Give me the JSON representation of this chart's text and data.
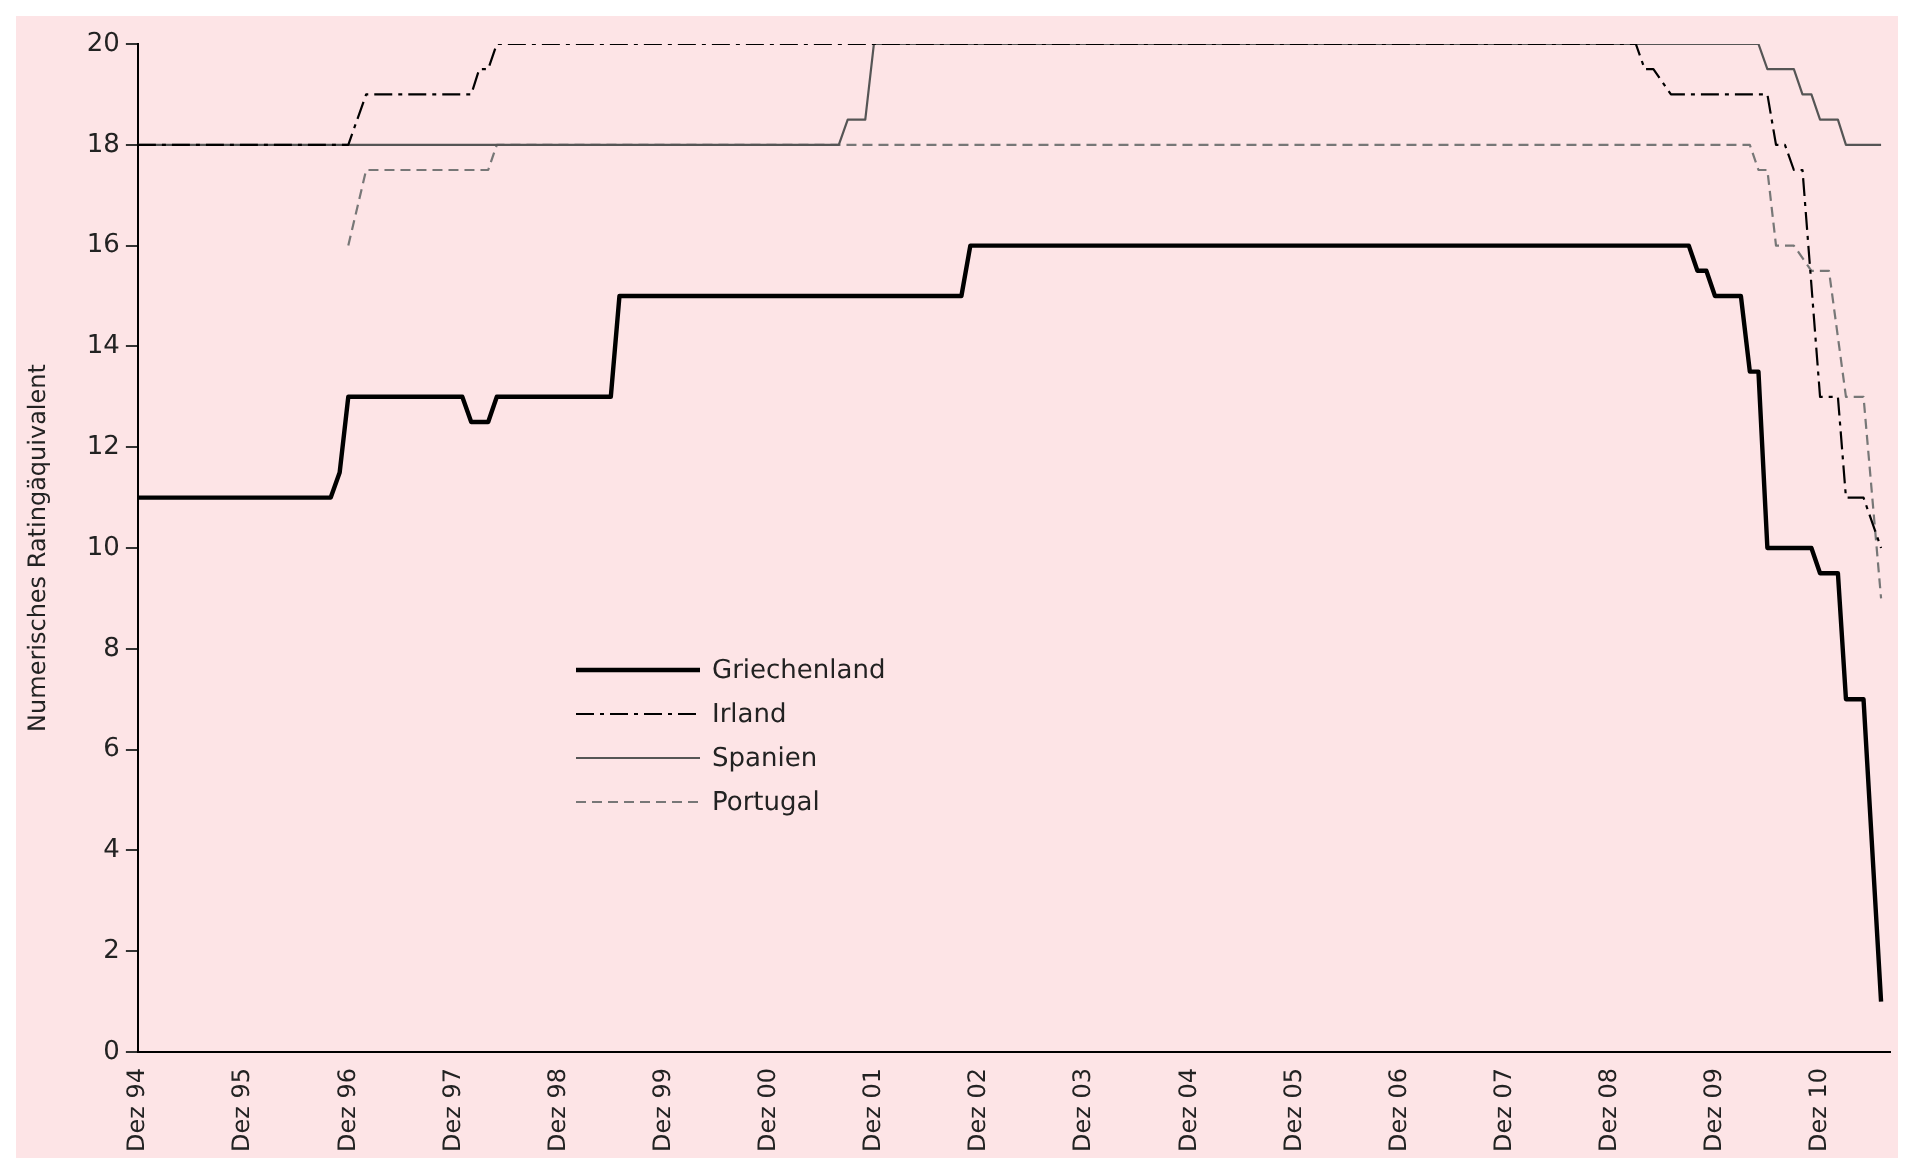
{
  "chart_data": {
    "type": "line",
    "ylabel": "Numerisches Ratingäquivalent",
    "xlim": [
      "1994-12",
      "2011-08"
    ],
    "xticks": [
      {
        "value": "1994-12",
        "label": "Dez 94"
      },
      {
        "value": "1995-12",
        "label": "Dez 95"
      },
      {
        "value": "1996-12",
        "label": "Dez 96"
      },
      {
        "value": "1997-12",
        "label": "Dez 97"
      },
      {
        "value": "1998-12",
        "label": "Dez 98"
      },
      {
        "value": "1999-12",
        "label": "Dez 99"
      },
      {
        "value": "2000-12",
        "label": "Dez 00"
      },
      {
        "value": "2001-12",
        "label": "Dez 01"
      },
      {
        "value": "2002-12",
        "label": "Dez 02"
      },
      {
        "value": "2003-12",
        "label": "Dez 03"
      },
      {
        "value": "2004-12",
        "label": "Dez 04"
      },
      {
        "value": "2005-12",
        "label": "Dez 05"
      },
      {
        "value": "2006-12",
        "label": "Dez 06"
      },
      {
        "value": "2007-12",
        "label": "Dez 07"
      },
      {
        "value": "2008-12",
        "label": "Dez 08"
      },
      {
        "value": "2009-12",
        "label": "Dez 09"
      },
      {
        "value": "2010-12",
        "label": "Dez 10"
      }
    ],
    "ylim": [
      0,
      20
    ],
    "yticks": [
      0,
      2,
      4,
      6,
      8,
      10,
      12,
      14,
      16,
      18,
      20
    ],
    "grid": false,
    "legend": "bottom",
    "marker": "none",
    "series": [
      {
        "name": "Griechenland",
        "color": "#000000",
        "line_style": "solid",
        "x": [
          "1994-12",
          "1996-10",
          "1996-11",
          "1996-12",
          "1998-01",
          "1998-02",
          "1998-04",
          "1998-05",
          "1999-06",
          "1999-07",
          "2002-10",
          "2002-11",
          "2009-09",
          "2009-10",
          "2009-11",
          "2009-12",
          "2010-03",
          "2010-04",
          "2010-05",
          "2010-06",
          "2010-11",
          "2010-12",
          "2011-02",
          "2011-03",
          "2011-05",
          "2011-07"
        ],
        "values": [
          11,
          11,
          11.5,
          13,
          13,
          12.5,
          12.5,
          13,
          13,
          15,
          15,
          16,
          16,
          15.5,
          15.5,
          15,
          15,
          13.5,
          13.5,
          10,
          10,
          9.5,
          9.5,
          7,
          7,
          1
        ]
      },
      {
        "name": "Irland",
        "color": "#000000",
        "line_style": "dashdot",
        "x": [
          "1994-12",
          "1996-12",
          "1997-02",
          "1998-02",
          "1998-03",
          "1998-04",
          "1998-05",
          "2009-03",
          "2009-04",
          "2009-05",
          "2009-07",
          "2010-06",
          "2010-07",
          "2010-08",
          "2010-09",
          "2010-10",
          "2010-12",
          "2011-02",
          "2011-03",
          "2011-05",
          "2011-07"
        ],
        "values": [
          18,
          18,
          19,
          19,
          19.5,
          19.5,
          20,
          20,
          19.5,
          19.5,
          19,
          19,
          18,
          18,
          17.5,
          17.5,
          13,
          13,
          11,
          11,
          10
        ]
      },
      {
        "name": "Spanien",
        "color": "#555555",
        "line_style": "solid",
        "x": [
          "1994-12",
          "2001-08",
          "2001-09",
          "2001-11",
          "2001-12",
          "2010-05",
          "2010-06",
          "2010-09",
          "2010-10",
          "2010-11",
          "2010-12",
          "2011-02",
          "2011-03",
          "2011-07"
        ],
        "values": [
          18,
          18,
          18.5,
          18.5,
          20,
          20,
          19.5,
          19.5,
          19,
          19,
          18.5,
          18.5,
          18,
          18
        ]
      },
      {
        "name": "Portugal",
        "color": "#777777",
        "line_style": "dashed",
        "x": [
          "1996-12",
          "1997-02",
          "1998-04",
          "1998-05",
          "2010-04",
          "2010-05",
          "2010-06",
          "2010-07",
          "2010-09",
          "2010-11",
          "2011-01",
          "2011-03",
          "2011-05",
          "2011-07"
        ],
        "values": [
          16,
          17.5,
          17.5,
          18,
          18,
          17.5,
          17.5,
          16,
          16,
          15.5,
          15.5,
          13,
          13,
          9
        ]
      }
    ]
  }
}
